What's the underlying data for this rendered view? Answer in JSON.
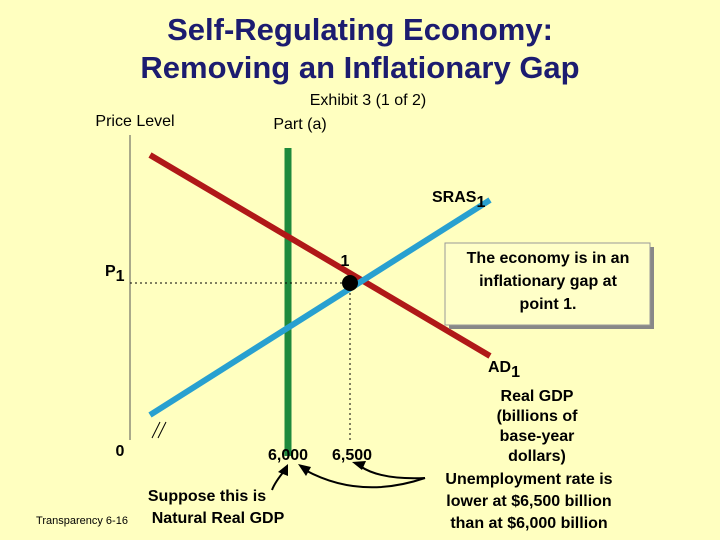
{
  "header": {
    "title": [
      "Self-Regulating Economy:",
      "Removing an Inflationary Gap"
    ],
    "exhibit": "Exhibit 3 (1 of 2)",
    "part": "Part (a)"
  },
  "axes": {
    "y_label": "Price Level",
    "x_label": [
      "Real GDP",
      "(billions of",
      "base-year",
      "dollars)"
    ],
    "origin": "0",
    "x_marks": [
      "6,000",
      "6,500"
    ],
    "y_mark": {
      "main": "P",
      "sub": "1"
    }
  },
  "curves": {
    "sras": {
      "main": "SRAS",
      "sub": "1"
    },
    "ad": {
      "main": "AD",
      "sub": "1"
    }
  },
  "point": "1",
  "callout": [
    "The economy is in an",
    "inflationary gap at",
    "point 1."
  ],
  "notes": {
    "natural": [
      "Suppose this is",
      "Natural Real GDP"
    ],
    "unemployment": [
      "Unemployment rate is",
      "lower at $6,500 billion",
      "than at $6,000 billion"
    ]
  },
  "footer": "Transparency 6-16"
}
